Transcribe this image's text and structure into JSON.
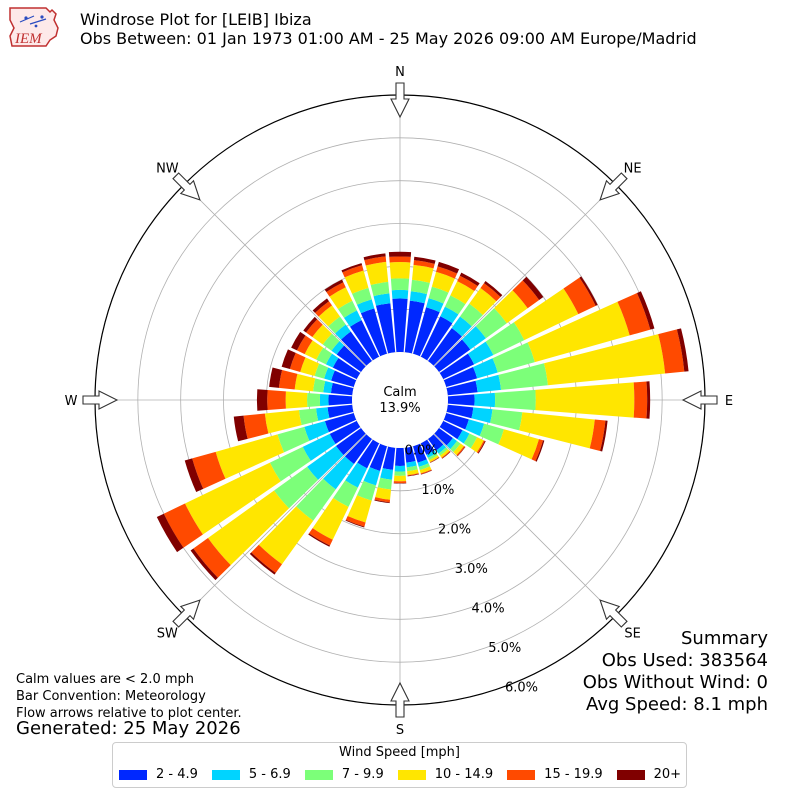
{
  "header": {
    "title": "Windrose Plot for [LEIB] Ibiza",
    "subtitle": "Obs Between: 01 Jan 1973 01:00 AM - 25 May 2026 09:00 AM Europe/Madrid",
    "logo_text": "IEM"
  },
  "notes": {
    "calm_note": "Calm values are < 2.0 mph",
    "bar_convention": "Bar Convention: Meteorology",
    "flow_note": "Flow arrows relative to plot center.",
    "generated": "Generated: 25 May 2026"
  },
  "summary": {
    "heading": "Summary",
    "obs_used": "Obs Used: 383564",
    "obs_without_wind": "Obs Without Wind: 0",
    "avg_speed": "Avg Speed: 8.1 mph"
  },
  "legend": {
    "title": "Wind Speed [mph]"
  },
  "colors": {
    "bins": [
      "#0028ff",
      "#00d4ff",
      "#7cff79",
      "#ffe600",
      "#ff4a00",
      "#800000"
    ],
    "grid": "#b0b0b0"
  },
  "chart_data": {
    "type": "windrose",
    "center_label": "Calm",
    "center_value": "13.9%",
    "calm_percent": 13.9,
    "radial_axis": {
      "min": 0,
      "max": 6.0,
      "unit": "%",
      "ticks": [
        0.0,
        1.0,
        2.0,
        3.0,
        4.0,
        5.0,
        6.0
      ],
      "tick_labels": [
        "0.0%",
        "1.0%",
        "2.0%",
        "3.0%",
        "4.0%",
        "5.0%",
        "6.0%"
      ]
    },
    "cardinal_labels": [
      "N",
      "NE",
      "E",
      "SE",
      "S",
      "SW",
      "W",
      "NW"
    ],
    "speed_bins": [
      "2 - 4.9",
      "5 - 6.9",
      "7 - 9.9",
      "10 - 14.9",
      "15 - 19.9",
      "20+"
    ],
    "directions_deg": [
      0,
      10,
      20,
      30,
      40,
      50,
      60,
      70,
      80,
      90,
      100,
      110,
      120,
      130,
      140,
      150,
      160,
      170,
      180,
      190,
      200,
      210,
      220,
      230,
      240,
      250,
      260,
      270,
      280,
      290,
      300,
      310,
      320,
      330,
      340,
      350
    ],
    "cumulative_percent": [
      [
        1.25,
        1.45,
        1.72,
        2.1,
        2.23,
        2.34
      ],
      [
        1.21,
        1.43,
        1.7,
        2.05,
        2.16,
        2.24
      ],
      [
        1.13,
        1.35,
        1.63,
        1.99,
        2.12,
        2.23
      ],
      [
        1.05,
        1.3,
        1.59,
        1.96,
        2.1,
        2.18
      ],
      [
        0.95,
        1.28,
        1.65,
        2.1,
        2.24,
        2.3
      ],
      [
        0.9,
        1.35,
        1.95,
        2.55,
        2.88,
        3.0
      ],
      [
        0.8,
        1.3,
        2.1,
        3.5,
        3.95,
        4.0
      ],
      [
        0.75,
        1.25,
        2.15,
        4.45,
        4.95,
        5.05
      ],
      [
        0.7,
        1.25,
        2.35,
        5.1,
        5.55,
        5.65
      ],
      [
        0.62,
        1.1,
        2.05,
        4.35,
        4.65,
        4.72
      ],
      [
        0.6,
        1.05,
        1.75,
        3.45,
        3.7,
        3.75
      ],
      [
        0.55,
        0.92,
        1.4,
        2.25,
        2.35,
        2.38
      ],
      [
        0.5,
        0.68,
        0.88,
        1.05,
        1.08,
        1.1
      ],
      [
        0.4,
        0.52,
        0.62,
        0.72,
        0.75,
        0.76
      ],
      [
        0.33,
        0.42,
        0.48,
        0.54,
        0.56,
        0.57
      ],
      [
        0.3,
        0.38,
        0.44,
        0.49,
        0.5,
        0.51
      ],
      [
        0.4,
        0.5,
        0.58,
        0.66,
        0.68,
        0.69
      ],
      [
        0.35,
        0.46,
        0.55,
        0.64,
        0.66,
        0.67
      ],
      [
        0.42,
        0.55,
        0.65,
        0.78,
        0.82,
        0.83
      ],
      [
        0.52,
        0.75,
        0.98,
        1.22,
        1.28,
        1.3
      ],
      [
        0.6,
        0.95,
        1.32,
        1.85,
        1.95,
        1.97
      ],
      [
        0.65,
        1.15,
        1.65,
        2.5,
        2.65,
        2.68
      ],
      [
        0.72,
        1.45,
        2.35,
        3.6,
        3.85,
        3.9
      ],
      [
        0.72,
        1.55,
        2.5,
        4.4,
        4.82,
        4.9
      ],
      [
        0.7,
        1.4,
        2.25,
        4.45,
        5.0,
        5.18
      ],
      [
        0.7,
        1.2,
        1.85,
        3.35,
        3.92,
        4.1
      ],
      [
        0.58,
        0.85,
        1.25,
        2.05,
        2.55,
        2.78
      ],
      [
        0.55,
        0.75,
        1.05,
        1.55,
        1.98,
        2.22
      ],
      [
        0.5,
        0.68,
        0.92,
        1.35,
        1.72,
        1.95
      ],
      [
        0.55,
        0.72,
        0.95,
        1.3,
        1.55,
        1.75
      ],
      [
        0.62,
        0.8,
        1.05,
        1.35,
        1.55,
        1.7
      ],
      [
        0.7,
        0.85,
        1.1,
        1.4,
        1.58,
        1.66
      ],
      [
        0.85,
        1.05,
        1.28,
        1.6,
        1.72,
        1.8
      ],
      [
        0.95,
        1.2,
        1.45,
        1.8,
        1.93,
        2.0
      ],
      [
        1.1,
        1.32,
        1.6,
        2.02,
        2.15,
        2.2
      ],
      [
        1.15,
        1.38,
        1.65,
        2.12,
        2.25,
        2.32
      ]
    ]
  }
}
